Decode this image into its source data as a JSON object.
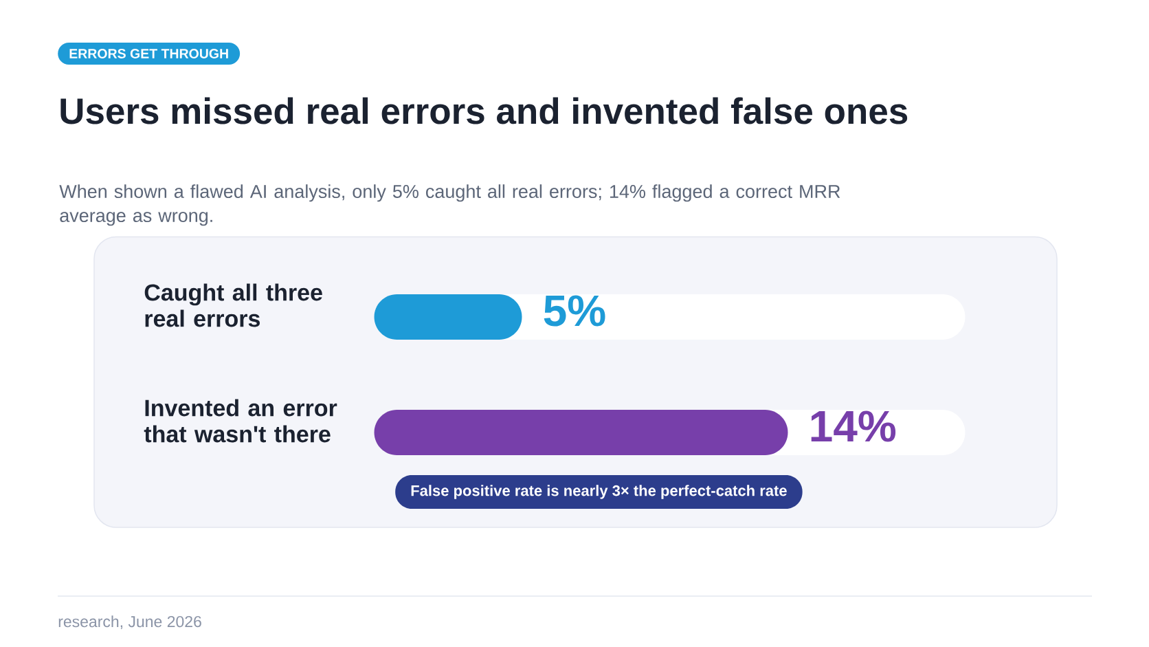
{
  "chart_data": {
    "type": "bar",
    "orientation": "horizontal",
    "title": "Users missed real errors and invented false ones",
    "subtitle": "When shown a flawed AI analysis, only 5% caught all real errors; 14% flagged a correct MRR average as wrong.",
    "categories": [
      "Caught all three real errors",
      "Invented an error that wasn't there"
    ],
    "values": [
      5,
      14
    ],
    "colors": [
      "#1e9bd7",
      "#773faa"
    ],
    "value_labels": [
      "5%",
      "14%"
    ],
    "xlim": [
      0,
      20
    ],
    "tick_labels": "y",
    "annotations": [
      "ERRORS GET THROUGH",
      "False positive rate is nearly 3× the perfect-catch rate",
      "research, June 2026"
    ]
  }
}
